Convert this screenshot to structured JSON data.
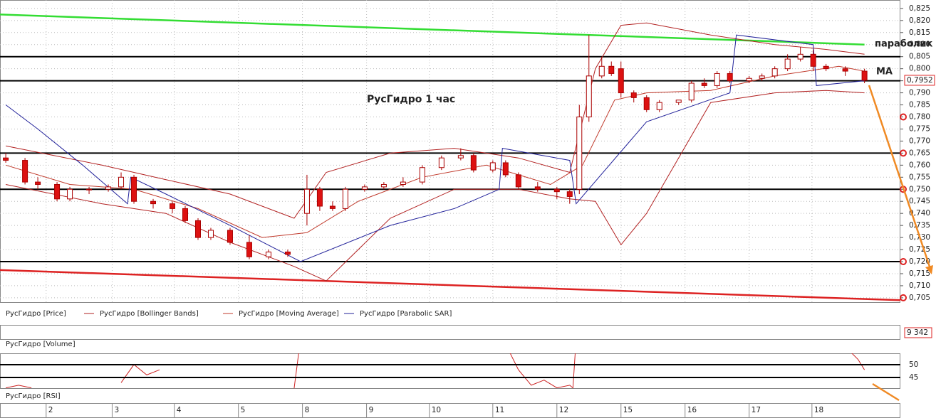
{
  "chart_data": [
    {
      "type": "candlestick",
      "title": "РусГидро   1 час",
      "name": "РусГидро [Price]",
      "annotations": [
        "параболик",
        "MA"
      ],
      "xlim": [
        -0.9,
        139.6
      ],
      "ylim": [
        0.7032,
        0.8285
      ],
      "grid": true,
      "yticks": [
        {
          "value": 0.825,
          "label": "0,825"
        },
        {
          "value": 0.82,
          "label": "0,820"
        },
        {
          "value": 0.815,
          "label": "0,815"
        },
        {
          "value": 0.81,
          "label": "0,810"
        },
        {
          "value": 0.805,
          "label": "0,805"
        },
        {
          "value": 0.8,
          "label": "0,800"
        },
        {
          "value": 0.795,
          "label": "0,795"
        },
        {
          "value": 0.79,
          "label": "0,790"
        },
        {
          "value": 0.785,
          "label": "0,785"
        },
        {
          "value": 0.78,
          "label": "0,780"
        },
        {
          "value": 0.775,
          "label": "0,775"
        },
        {
          "value": 0.77,
          "label": "0,770"
        },
        {
          "value": 0.765,
          "label": "0,765"
        },
        {
          "value": 0.76,
          "label": "0,760"
        },
        {
          "value": 0.755,
          "label": "0,755"
        },
        {
          "value": 0.75,
          "label": "0,750"
        },
        {
          "value": 0.745,
          "label": "0,745"
        },
        {
          "value": 0.74,
          "label": "0,740"
        },
        {
          "value": 0.735,
          "label": "0,735"
        },
        {
          "value": 0.73,
          "label": "0,730"
        },
        {
          "value": 0.725,
          "label": "0,725"
        },
        {
          "value": 0.72,
          "label": "0,720"
        },
        {
          "value": 0.715,
          "label": "0,715"
        },
        {
          "value": 0.71,
          "label": "0,710"
        },
        {
          "value": 0.705,
          "label": "0,705"
        }
      ],
      "xticks": [
        {
          "value": 6.3,
          "label": "2"
        },
        {
          "value": 16.6,
          "label": "3"
        },
        {
          "value": 26.3,
          "label": "4"
        },
        {
          "value": 36.3,
          "label": "5"
        },
        {
          "value": 46.3,
          "label": "8"
        },
        {
          "value": 56.3,
          "label": "9"
        },
        {
          "value": 66.1,
          "label": "10"
        },
        {
          "value": 76,
          "label": "11"
        },
        {
          "value": 86,
          "label": "12"
        },
        {
          "value": 96,
          "label": "15"
        },
        {
          "value": 106,
          "label": "16"
        },
        {
          "value": 116,
          "label": "17"
        },
        {
          "value": 125.8,
          "label": "18"
        }
      ],
      "x": [
        0,
        3,
        5,
        8,
        10,
        13,
        16,
        18,
        20,
        23,
        26,
        28,
        30,
        32,
        35,
        38,
        41,
        44,
        47,
        49,
        51,
        53,
        56,
        59,
        62,
        65,
        68,
        71,
        73,
        76,
        78,
        80,
        83,
        86,
        88,
        89.5,
        91,
        93,
        94.5,
        96,
        98,
        100,
        102,
        105,
        107,
        109,
        111,
        113,
        116,
        118,
        120,
        122,
        124,
        126,
        128,
        131,
        134
      ],
      "open": [
        0.763,
        0.762,
        0.753,
        0.752,
        0.746,
        0.75,
        0.75,
        0.751,
        0.755,
        0.745,
        0.744,
        0.742,
        0.737,
        0.73,
        0.733,
        0.728,
        0.722,
        0.724,
        0.74,
        0.75,
        0.743,
        0.742,
        0.75,
        0.751,
        0.752,
        0.753,
        0.759,
        0.763,
        0.764,
        0.758,
        0.761,
        0.756,
        0.751,
        0.75,
        0.749,
        0.75,
        0.78,
        0.797,
        0.801,
        0.8,
        0.79,
        0.788,
        0.783,
        0.786,
        0.787,
        0.794,
        0.793,
        0.798,
        0.795,
        0.796,
        0.797,
        0.8,
        0.804,
        0.806,
        0.801,
        0.8,
        0.799
      ],
      "high": [
        0.765,
        0.763,
        0.755,
        0.753,
        0.751,
        0.751,
        0.752,
        0.757,
        0.756,
        0.746,
        0.745,
        0.743,
        0.738,
        0.734,
        0.734,
        0.731,
        0.725,
        0.725,
        0.756,
        0.751,
        0.745,
        0.751,
        0.752,
        0.753,
        0.755,
        0.76,
        0.764,
        0.767,
        0.765,
        0.762,
        0.762,
        0.757,
        0.753,
        0.751,
        0.75,
        0.785,
        0.814,
        0.805,
        0.803,
        0.803,
        0.791,
        0.789,
        0.787,
        0.787,
        0.795,
        0.796,
        0.799,
        0.799,
        0.797,
        0.798,
        0.801,
        0.806,
        0.809,
        0.808,
        0.802,
        0.801,
        0.8
      ],
      "low": [
        0.761,
        0.752,
        0.75,
        0.745,
        0.745,
        0.748,
        0.749,
        0.75,
        0.744,
        0.742,
        0.74,
        0.736,
        0.729,
        0.729,
        0.727,
        0.721,
        0.721,
        0.722,
        0.735,
        0.741,
        0.741,
        0.741,
        0.749,
        0.75,
        0.751,
        0.752,
        0.758,
        0.762,
        0.757,
        0.757,
        0.755,
        0.75,
        0.749,
        0.746,
        0.744,
        0.748,
        0.778,
        0.796,
        0.797,
        0.788,
        0.786,
        0.782,
        0.782,
        0.785,
        0.786,
        0.792,
        0.792,
        0.794,
        0.794,
        0.795,
        0.796,
        0.799,
        0.803,
        0.799,
        0.799,
        0.797,
        0.794
      ],
      "close": [
        0.762,
        0.753,
        0.752,
        0.746,
        0.75,
        0.75,
        0.751,
        0.755,
        0.745,
        0.744,
        0.742,
        0.737,
        0.73,
        0.733,
        0.728,
        0.722,
        0.724,
        0.723,
        0.75,
        0.743,
        0.742,
        0.75,
        0.751,
        0.752,
        0.753,
        0.759,
        0.763,
        0.764,
        0.758,
        0.761,
        0.756,
        0.751,
        0.75,
        0.749,
        0.747,
        0.78,
        0.797,
        0.801,
        0.798,
        0.79,
        0.788,
        0.783,
        0.786,
        0.787,
        0.794,
        0.793,
        0.798,
        0.795,
        0.796,
        0.797,
        0.8,
        0.804,
        0.806,
        0.801,
        0.8,
        0.799,
        0.7952
      ],
      "bull_color": "#ffffff",
      "bear_color": "#dd1111",
      "series": [
        {
          "name": "РусГидро [Bollinger Bands]",
          "color": "#b22222",
          "x": [
            0,
            15,
            25,
            35,
            45,
            50,
            60,
            70,
            80,
            88,
            92,
            96,
            100,
            110,
            120,
            128,
            134
          ],
          "upper": [
            0.768,
            0.76,
            0.754,
            0.748,
            0.738,
            0.757,
            0.765,
            0.767,
            0.763,
            0.757,
            0.8,
            0.818,
            0.819,
            0.814,
            0.81,
            0.808,
            0.806
          ],
          "lower": [
            0.752,
            0.744,
            0.74,
            0.728,
            0.718,
            0.712,
            0.738,
            0.75,
            0.75,
            0.746,
            0.745,
            0.727,
            0.74,
            0.786,
            0.79,
            0.791,
            0.79
          ]
        },
        {
          "name": "РусГидро [Moving Average]",
          "color": "#c0392b",
          "x": [
            0,
            10,
            20,
            30,
            40,
            47,
            55,
            65,
            75,
            85,
            90,
            95,
            100,
            110,
            120,
            130,
            134
          ],
          "values": [
            0.76,
            0.752,
            0.75,
            0.742,
            0.73,
            0.732,
            0.745,
            0.755,
            0.76,
            0.752,
            0.76,
            0.787,
            0.79,
            0.791,
            0.797,
            0.801,
            0.799
          ]
        },
        {
          "name": "РусГидро [Parabolic SAR]",
          "color": "#22229a",
          "x": [
            0,
            5,
            12,
            19,
            19.5,
            25,
            35,
            46,
            60,
            70,
            77,
            77.5,
            88,
            89,
            100,
            113,
            114,
            126,
            126.5,
            134
          ],
          "values": [
            0.785,
            0.775,
            0.76,
            0.744,
            0.755,
            0.748,
            0.735,
            0.72,
            0.735,
            0.742,
            0.75,
            0.767,
            0.762,
            0.744,
            0.778,
            0.79,
            0.814,
            0.81,
            0.793,
            0.795
          ]
        }
      ],
      "trendlines": [
        {
          "color": "#33dd33",
          "x": [
            -0.9,
            134
          ],
          "values": [
            0.8225,
            0.81
          ]
        },
        {
          "color": "#dd2222",
          "x": [
            -0.9,
            139.6
          ],
          "values": [
            0.7165,
            0.704
          ]
        }
      ],
      "levels": [
        0.805,
        0.795,
        0.765,
        0.75,
        0.72
      ],
      "axis_markers": [
        0.78,
        0.765,
        0.75,
        0.72,
        0.705
      ],
      "last_price": {
        "value": 0.7952,
        "label": "0,7952"
      }
    },
    {
      "type": "bar",
      "name": "РусГидро [Volume]",
      "last": {
        "value": 9342,
        "label": "9 342"
      }
    },
    {
      "type": "line",
      "name": "РусГидро [RSI]",
      "color": "#cc2222",
      "xlim": [
        -0.9,
        139.6
      ],
      "ylim": [
        40.6,
        54.4
      ],
      "yticks": [
        45,
        50
      ],
      "x": [
        0,
        2,
        4,
        10,
        18,
        20,
        22,
        24,
        35,
        45,
        46,
        60,
        78,
        80,
        82,
        84,
        86,
        88,
        88.5,
        89,
        110,
        131,
        133,
        134
      ],
      "values": [
        41,
        42,
        41,
        null,
        43,
        50,
        46,
        48,
        null,
        40.8,
        60,
        null,
        58,
        48,
        42,
        44,
        41,
        42,
        41,
        60,
        null,
        57,
        52,
        48
      ]
    }
  ]
}
